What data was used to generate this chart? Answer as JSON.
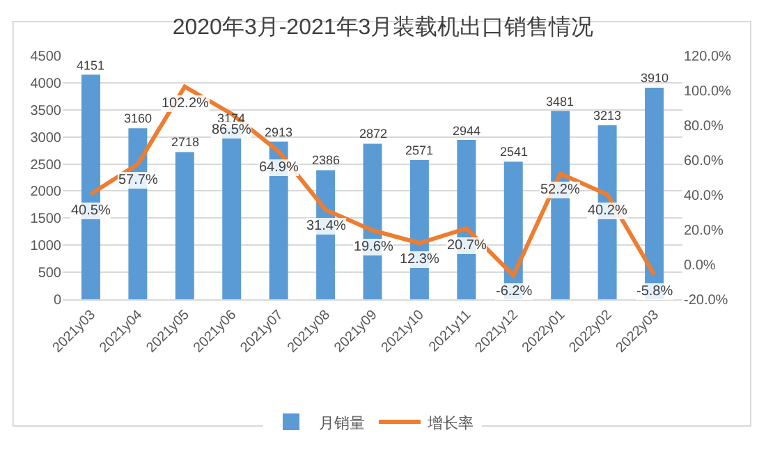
{
  "chart_data": {
    "type": "bar",
    "title": "2020年3月-2021年3月装载机出口销售情况",
    "categories": [
      "2021y03",
      "2021y04",
      "2021y05",
      "2021y06",
      "2021y07",
      "2021y08",
      "2021y09",
      "2021y10",
      "2021y11",
      "2021y12",
      "2022y01",
      "2022y02",
      "2022y03"
    ],
    "series": [
      {
        "name": "月销量",
        "color": "#5b9bd5",
        "values": [
          4151,
          3160,
          2718,
          3174,
          2913,
          2386,
          2872,
          2571,
          2944,
          2541,
          3481,
          3213,
          3910
        ]
      },
      {
        "name": "增长率",
        "type": "line",
        "axis": "y2",
        "color": "#ed7d31",
        "values": [
          40.5,
          57.7,
          102.2,
          86.5,
          64.9,
          31.4,
          19.6,
          12.3,
          20.7,
          -6.2,
          52.2,
          40.2,
          -5.8
        ],
        "value_labels": [
          "40.5%",
          "57.7%",
          "102.2%",
          "86.5%",
          "64.9%",
          "31.4%",
          "19.6%",
          "12.3%",
          "20.7%",
          "-6.2%",
          "52.2%",
          "40.2%",
          "-5.8%"
        ]
      }
    ],
    "ylim": [
      0,
      4500
    ],
    "yticks": [
      0,
      500,
      1000,
      1500,
      2000,
      2500,
      3000,
      3500,
      4000,
      4500
    ],
    "y2lim": [
      -20,
      120
    ],
    "y2ticks": [
      {
        "value": -20,
        "label": "-20.0%"
      },
      {
        "value": 0,
        "label": "0.0%"
      },
      {
        "value": 20,
        "label": "20.0%"
      },
      {
        "value": 40,
        "label": "40.0%"
      },
      {
        "value": 60,
        "label": "60.0%"
      },
      {
        "value": 80,
        "label": "80.0%"
      },
      {
        "value": 100,
        "label": "100.0%"
      },
      {
        "value": 120,
        "label": "120.0%"
      }
    ],
    "data_labels": true,
    "grid": "y",
    "legend": "bottom",
    "marker": "none",
    "line_style": "solid"
  }
}
